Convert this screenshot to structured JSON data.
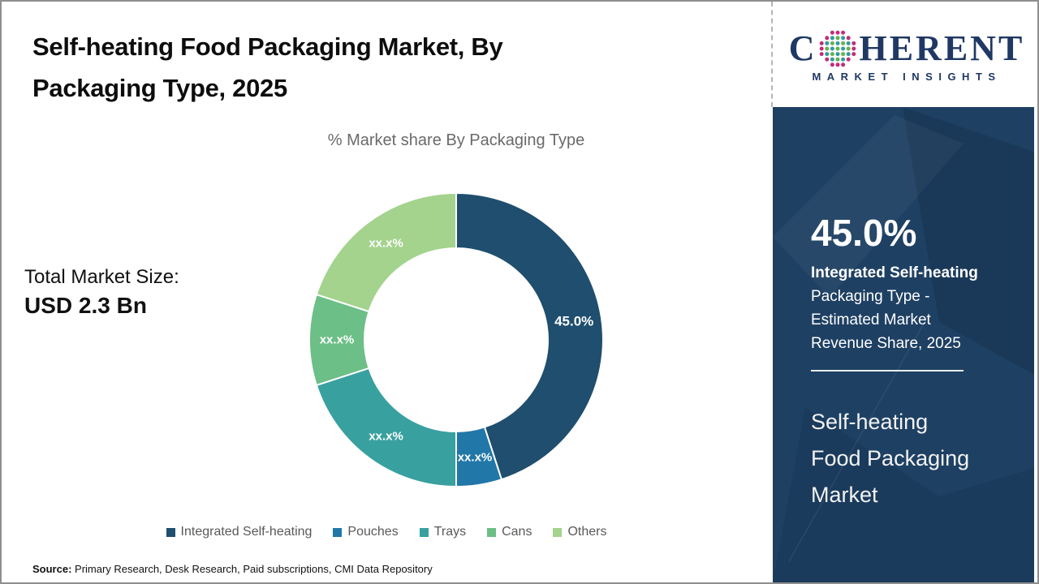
{
  "header": {
    "title_line1": "Self-heating Food Packaging Market, By",
    "title_line2": "Packaging Type, 2025",
    "subtitle": "% Market share By Packaging Type"
  },
  "total_market": {
    "label": "Total Market Size:",
    "value": "USD 2.3 Bn"
  },
  "chart_data": {
    "type": "pie",
    "subtype": "donut",
    "title": "% Market share By Packaging Type",
    "start_angle_deg": 0,
    "direction": "clockwise",
    "legend_position": "bottom",
    "label_color": "#ffffff",
    "series": [
      {
        "name": "Integrated Self-heating",
        "value": 45.0,
        "label": "45.0%",
        "color": "#1f4e6e"
      },
      {
        "name": "Pouches",
        "value": 5.0,
        "label": "xx.x%",
        "color": "#2177a8"
      },
      {
        "name": "Trays",
        "value": 20.0,
        "label": "xx.x%",
        "color": "#39a0a0"
      },
      {
        "name": "Cans",
        "value": 10.0,
        "label": "xx.x%",
        "color": "#6cbf87"
      },
      {
        "name": "Others",
        "value": 20.0,
        "label": "xx.x%",
        "color": "#a3d38d"
      }
    ]
  },
  "sidebar": {
    "logo": {
      "text_c": "C",
      "text_rest": "HERENT",
      "subtitle": "MARKET INSIGHTS",
      "color": "#1f3864",
      "globe_colors": {
        "outer": "#c22d7c",
        "teal": "#2e9d9d",
        "green": "#6ab04c"
      }
    },
    "bg_color": "#1e4063",
    "stat": {
      "value": "45.0%",
      "line1": "Integrated Self-heating",
      "line2": "Packaging Type -",
      "line3": "Estimated Market",
      "line4": "Revenue Share, 2025"
    },
    "market_title": {
      "line1": "Self-heating",
      "line2": "Food Packaging",
      "line3": "Market"
    }
  },
  "footer": {
    "source_label": "Source:",
    "source_text": "Primary Research, Desk Research, Paid subscriptions, CMI Data Repository"
  }
}
